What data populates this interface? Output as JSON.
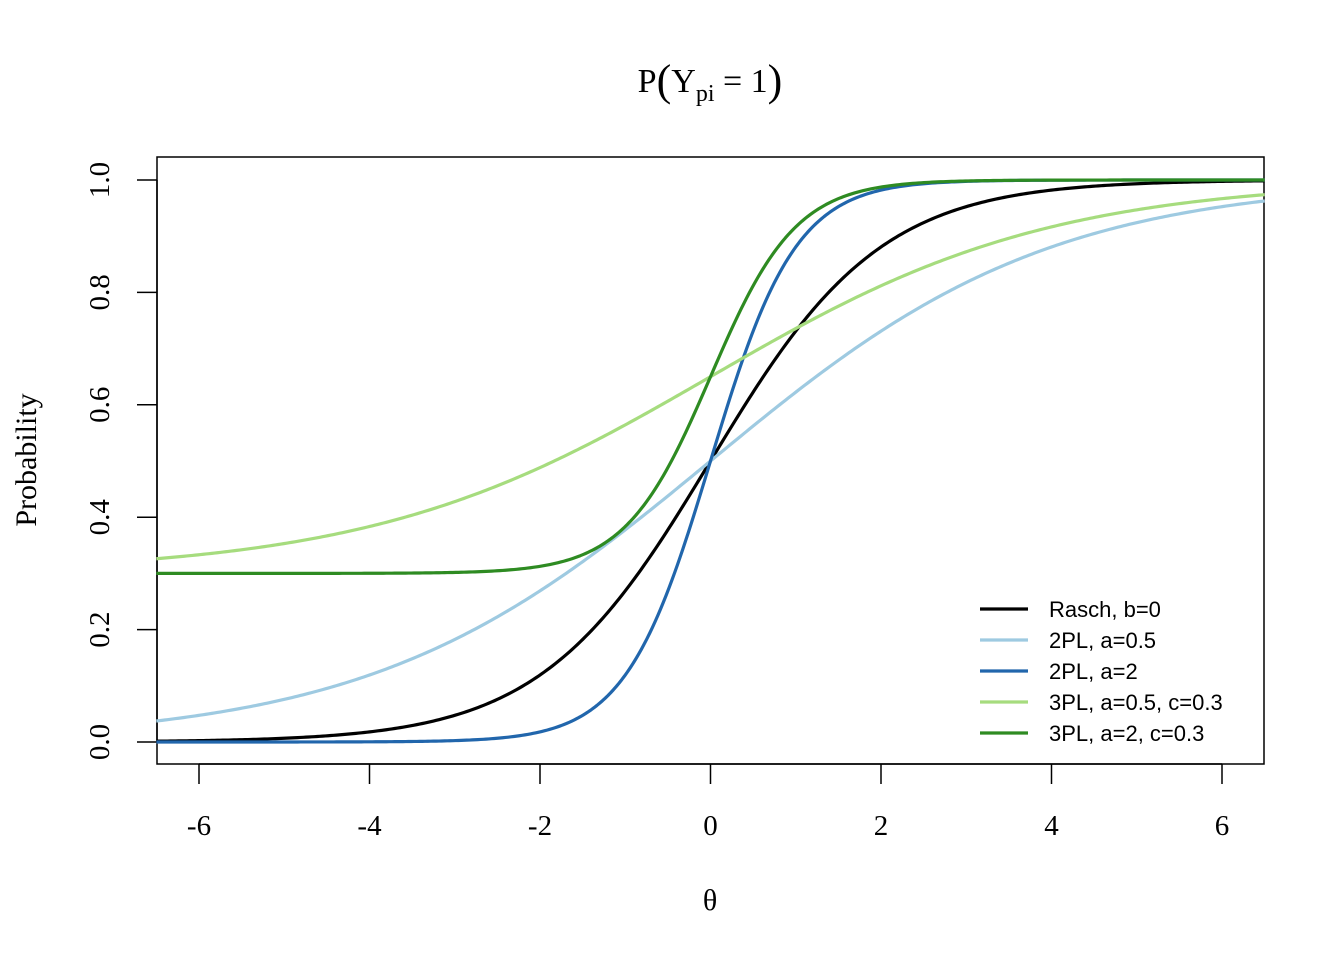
{
  "chart_data": {
    "type": "line",
    "title": {
      "prefix": "P",
      "open_paren": "(",
      "var": "Y",
      "subscript": "pi",
      "suffix": " = 1",
      "close_paren": ")"
    },
    "xlabel": "θ",
    "ylabel": "Probability",
    "xlim": [
      -6.5,
      6.5
    ],
    "ylim": [
      -0.04,
      1.04
    ],
    "xticks": [
      -6,
      -4,
      -2,
      0,
      2,
      4,
      6
    ],
    "xtick_labels": [
      "-6",
      "-4",
      "-2",
      "0",
      "2",
      "4",
      "6"
    ],
    "yticks": [
      0.0,
      0.2,
      0.4,
      0.6,
      0.8,
      1.0
    ],
    "ytick_labels": [
      "0.0",
      "0.2",
      "0.4",
      "0.6",
      "0.8",
      "1.0"
    ],
    "grid": false,
    "legend_position": "bottom-right",
    "series": [
      {
        "name": "Rasch, b=0",
        "a": 1,
        "b": 0,
        "c": 0,
        "color": "#000000"
      },
      {
        "name": "2PL, a=0.5",
        "a": 0.5,
        "b": 0,
        "c": 0,
        "color": "#9ECAE1"
      },
      {
        "name": "2PL, a=2",
        "a": 2,
        "b": 0,
        "c": 0,
        "color": "#2166AC"
      },
      {
        "name": "3PL, a=0.5, c=0.3",
        "a": 0.5,
        "b": 0,
        "c": 0.3,
        "color": "#A6DC7E"
      },
      {
        "name": "3PL, a=2, c=0.3",
        "a": 2,
        "b": 0,
        "c": 0.3,
        "color": "#2E8B22"
      }
    ]
  }
}
